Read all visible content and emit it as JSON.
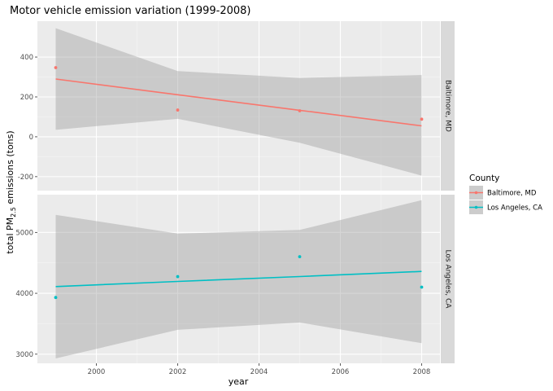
{
  "chart_data": {
    "type": "scatter",
    "title": "Motor vehicle emission variation (1999-2008)",
    "xlabel": "year",
    "ylabel_prefix": "total PM",
    "ylabel_subscript": "2.5",
    "ylabel_suffix": " emissions (tons)",
    "x_ticks": [
      2000,
      2002,
      2004,
      2006,
      2008
    ],
    "xlim": [
      1998.55,
      2008.45
    ],
    "legend": {
      "title": "County",
      "position": "right"
    },
    "grid": true,
    "facets": [
      {
        "name": "Baltimore, MD",
        "strip_label": "Baltimore, MD",
        "color": "#F8766D",
        "ylim": [
          -270,
          580
        ],
        "y_ticks": [
          -200,
          0,
          200,
          400
        ],
        "points": [
          {
            "x": 1999,
            "y": 346.82
          },
          {
            "x": 2002,
            "y": 134.31
          },
          {
            "x": 2005,
            "y": 130.43
          },
          {
            "x": 2008,
            "y": 88.28
          }
        ],
        "fit": {
          "x": [
            1999,
            2002,
            2005,
            2008
          ],
          "y": [
            290,
            211,
            133,
            55
          ],
          "lower": [
            35,
            90,
            -30,
            -195
          ],
          "upper": [
            545,
            330,
            295,
            310
          ]
        }
      },
      {
        "name": "Los Angeles, CA",
        "strip_label": "Los Angeles, CA",
        "color": "#00BFC4",
        "ylim": [
          2850,
          5620
        ],
        "y_ticks": [
          3000,
          4000,
          5000
        ],
        "points": [
          {
            "x": 1999,
            "y": 3931.12
          },
          {
            "x": 2002,
            "y": 4274.03
          },
          {
            "x": 2005,
            "y": 4601.41
          },
          {
            "x": 2008,
            "y": 4101.32
          }
        ],
        "fit": {
          "x": [
            1999,
            2002,
            2005,
            2008
          ],
          "y": [
            4110,
            4195,
            4275,
            4360
          ],
          "lower": [
            2930,
            3400,
            3520,
            3180
          ],
          "upper": [
            5290,
            4980,
            5040,
            5530
          ]
        }
      }
    ]
  }
}
